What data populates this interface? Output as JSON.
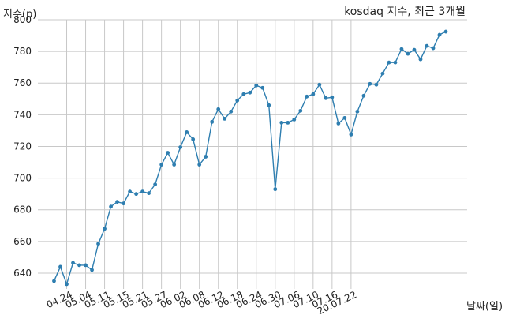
{
  "chart_data": {
    "type": "line",
    "title": "kosdaq 지수, 최근 3개월",
    "xlabel": "날짜(일)",
    "ylabel": "지수(p)",
    "ylim": [
      630,
      800
    ],
    "yticks": [
      640,
      660,
      680,
      700,
      720,
      740,
      760,
      780,
      800
    ],
    "grid": true,
    "line_color": "#2e7eb0",
    "x_ticks": [
      {
        "index": 2,
        "label": "04.24"
      },
      {
        "index": 5,
        "label": "05.04"
      },
      {
        "index": 8,
        "label": "05.11"
      },
      {
        "index": 11,
        "label": "05.15"
      },
      {
        "index": 14,
        "label": "05.21"
      },
      {
        "index": 17,
        "label": "05.27"
      },
      {
        "index": 20,
        "label": "06.02"
      },
      {
        "index": 23,
        "label": "06.08"
      },
      {
        "index": 26,
        "label": "06.12"
      },
      {
        "index": 29,
        "label": "06.18"
      },
      {
        "index": 32,
        "label": "06.24"
      },
      {
        "index": 35,
        "label": "06.30"
      },
      {
        "index": 38,
        "label": "07.06"
      },
      {
        "index": 41,
        "label": "07.10"
      },
      {
        "index": 44,
        "label": "07.16"
      },
      {
        "index": 47,
        "label": "20.07.22"
      }
    ],
    "series": [
      {
        "values": [
          635,
          644,
          633,
          646.5,
          645,
          645,
          642,
          658.5,
          668,
          682,
          685,
          684,
          691.5,
          690,
          691.5,
          690.5,
          696,
          708.5,
          716,
          708.5,
          719.5,
          729,
          724.5,
          708.5,
          713.5,
          735.5,
          743.5,
          737.5,
          742,
          749,
          753,
          754,
          758.5,
          757,
          746,
          693,
          735,
          735,
          737,
          742.5,
          751.5,
          753,
          759,
          750.5,
          751,
          734.5,
          738,
          727.5,
          742,
          752,
          759.5,
          759,
          766,
          773,
          773,
          781.5,
          778.5,
          781,
          775,
          783.5,
          782,
          790.5,
          792.5
        ]
      }
    ]
  }
}
